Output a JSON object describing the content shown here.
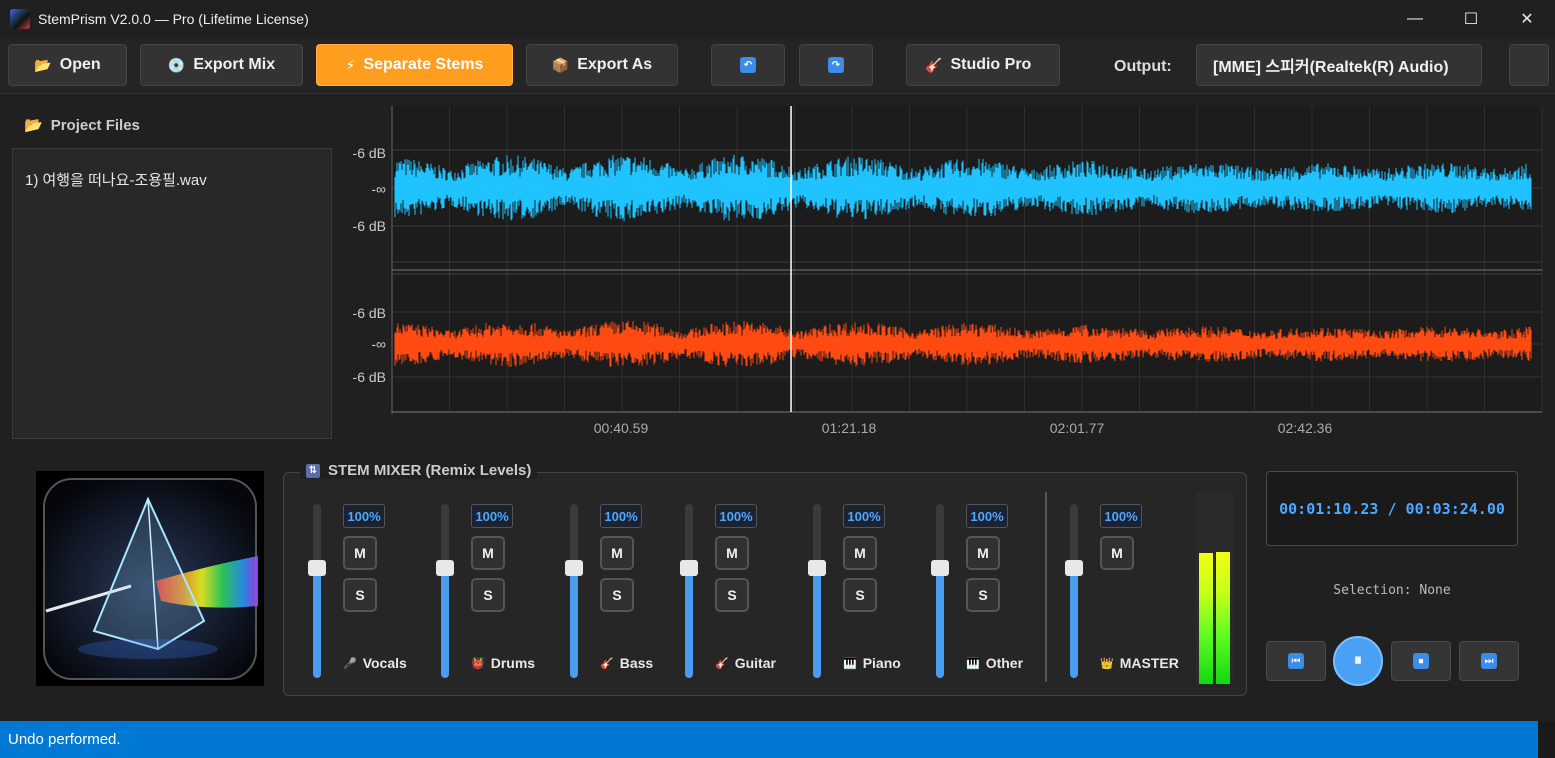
{
  "window": {
    "title": "StemPrism V2.0.0 — Pro (Lifetime License)",
    "minimize": "—",
    "maximize": "☐",
    "close": "✕"
  },
  "toolbar": {
    "open": {
      "label": "Open",
      "icon": "📂"
    },
    "export_mix": {
      "label": "Export Mix",
      "icon": "💿"
    },
    "separate_stems": {
      "label": "Separate Stems",
      "icon": "⚡"
    },
    "export_as": {
      "label": "Export As",
      "icon": "📦"
    },
    "undo_icon": "↶",
    "redo_icon": "↷",
    "studio_pro": {
      "label": "Studio Pro",
      "icon": "🎸"
    },
    "output_label": "Output:",
    "output_device": "[MME] 스피커(Realtek(R) Audio)"
  },
  "project_files": {
    "title": "Project Files",
    "icon": "📂",
    "items": [
      "1) 여행을 떠나요-조용필.wav"
    ]
  },
  "waveform": {
    "db_labels": [
      "-6 dB",
      "-∞",
      "-6 dB"
    ],
    "time_labels": [
      "00:40.59",
      "01:21.18",
      "02:01.77",
      "02:42.36"
    ],
    "top_color": "#1ec3ff",
    "bottom_color": "#ff4a12",
    "playhead_fraction": 0.347
  },
  "mixer": {
    "title": "STEM MIXER (Remix Levels)",
    "tracks": [
      {
        "name": "Vocals",
        "icon": "🎤",
        "volume": "100%",
        "mute": "M",
        "solo": "S"
      },
      {
        "name": "Drums",
        "icon": "👹",
        "volume": "100%",
        "mute": "M",
        "solo": "S"
      },
      {
        "name": "Bass",
        "icon": "🎸",
        "volume": "100%",
        "mute": "M",
        "solo": "S"
      },
      {
        "name": "Guitar",
        "icon": "🎸",
        "volume": "100%",
        "mute": "M",
        "solo": "S"
      },
      {
        "name": "Piano",
        "icon": "🎹",
        "volume": "100%",
        "mute": "M",
        "solo": "S"
      },
      {
        "name": "Other",
        "icon": "🎹",
        "volume": "100%",
        "mute": "M",
        "solo": "S"
      }
    ],
    "master": {
      "name": "MASTER",
      "icon": "👑",
      "volume": "100%",
      "mute": "M"
    },
    "meter_levels": [
      0.68,
      0.69
    ]
  },
  "transport": {
    "timecode": "00:01:10.23 / 00:03:24.00",
    "selection": "Selection: None",
    "rewind_icon": "⏮",
    "pause_icon": "⏸",
    "stop_icon": "⏹",
    "forward_icon": "⏭"
  },
  "status": {
    "message": "Undo performed."
  },
  "colors": {
    "accent": "#ff9d1e",
    "blue": "#4ea8ff",
    "status_bar": "#0078d4"
  }
}
